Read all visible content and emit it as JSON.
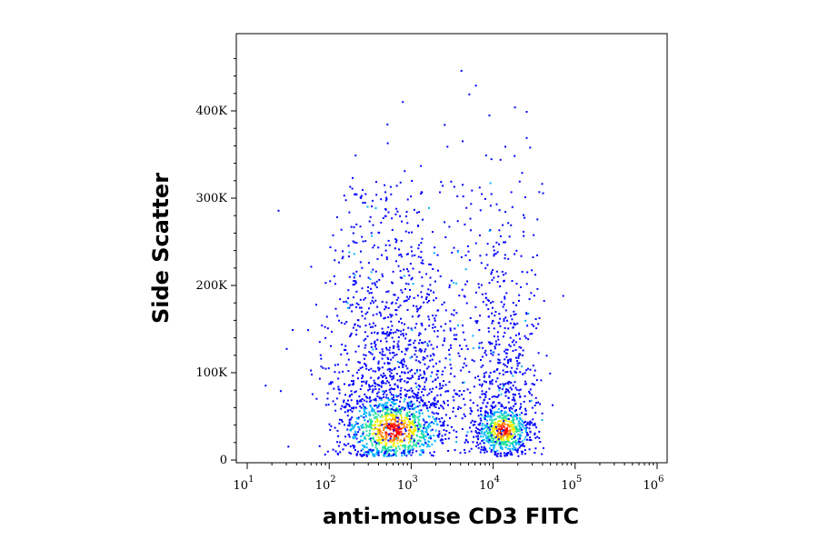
{
  "chart_data": {
    "type": "scatter",
    "title": "",
    "xlabel": "anti-mouse CD3 FITC",
    "ylabel": "Side Scatter",
    "xscale": "log",
    "xlim": [
      10,
      1000000
    ],
    "ylim": [
      -5000,
      485000
    ],
    "x_ticks": [
      {
        "value": 10,
        "base": "10",
        "exp": "1"
      },
      {
        "value": 100,
        "base": "10",
        "exp": "2"
      },
      {
        "value": 1000,
        "base": "10",
        "exp": "3"
      },
      {
        "value": 10000,
        "base": "10",
        "exp": "4"
      },
      {
        "value": 100000,
        "base": "10",
        "exp": "5"
      },
      {
        "value": 1000000,
        "base": "10",
        "exp": "6"
      }
    ],
    "y_ticks": [
      {
        "value": 0,
        "label": "0"
      },
      {
        "value": 100000,
        "label": "100K"
      },
      {
        "value": 200000,
        "label": "200K"
      },
      {
        "value": 300000,
        "label": "300K"
      },
      {
        "value": 400000,
        "label": "400K"
      }
    ],
    "grid": false,
    "legend": "none",
    "density_coloring": [
      "#0000ff",
      "#00b4ff",
      "#22e0a0",
      "#f0f000",
      "#ff8000",
      "#ff0000"
    ],
    "populations": [
      {
        "center_x": 600,
        "center_y": 35000,
        "peak_color": "#ff0000"
      },
      {
        "center_x": 13000,
        "center_y": 35000,
        "peak_color": "#ff0000"
      }
    ],
    "sample_points": [
      [
        4000,
        447000
      ],
      [
        6000,
        430000
      ],
      [
        5000,
        420000
      ],
      [
        18000,
        405000
      ],
      [
        25000,
        400000
      ],
      [
        2500,
        385000
      ],
      [
        2700,
        360000
      ],
      [
        25000,
        370000
      ],
      [
        22000,
        330000
      ],
      [
        8000,
        350000
      ],
      [
        3000,
        320000
      ],
      [
        12000,
        345000
      ],
      [
        25,
        80000
      ],
      [
        35,
        150000
      ],
      [
        600,
        35000
      ],
      [
        13000,
        35000
      ]
    ]
  }
}
